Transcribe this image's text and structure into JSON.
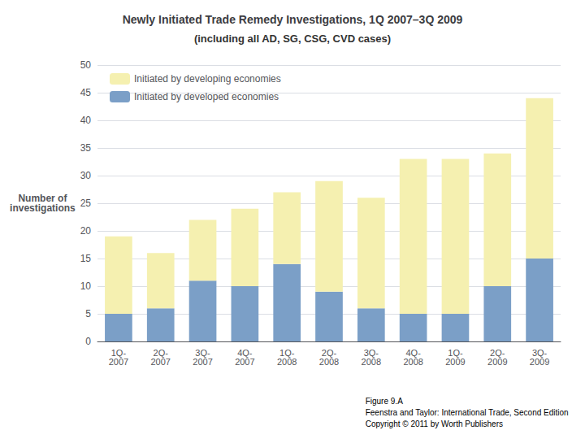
{
  "chart_data": {
    "type": "bar",
    "title": "Newly Initiated Trade Remedy Investigations, 1Q 2007–3Q 2009",
    "subtitle": "(including all AD, SG, CSG, CVD cases)",
    "ylabel": "Number of\ninvestigations",
    "categories": [
      "1Q-\n2007",
      "2Q-\n2007",
      "3Q-\n2007",
      "4Q-\n2007",
      "1Q-\n2008",
      "2Q-\n2008",
      "3Q-\n2008",
      "4Q-\n2008",
      "1Q-\n2009",
      "2Q-\n2009",
      "3Q-\n2009"
    ],
    "series": [
      {
        "name": "Initiated by developed economies",
        "color": "#7b9fc7",
        "values": [
          5,
          6,
          11,
          10,
          14,
          9,
          6,
          5,
          5,
          10,
          15
        ]
      },
      {
        "name": "Initiated by developing economies",
        "color": "#f5f0b0",
        "values": [
          14,
          10,
          11,
          14,
          13,
          20,
          20,
          28,
          28,
          24,
          29
        ]
      }
    ],
    "stacked": true,
    "ylim": [
      0,
      50
    ],
    "yticks": [
      0,
      5,
      10,
      15,
      20,
      25,
      30,
      35,
      40,
      45,
      50
    ],
    "grid": true,
    "legend": "upper left",
    "annotations": [
      "Figure 9.A\nFeenstra and Taylor: International Trade, Second Edition\nCopyright © 2011 by Worth Publishers"
    ]
  }
}
